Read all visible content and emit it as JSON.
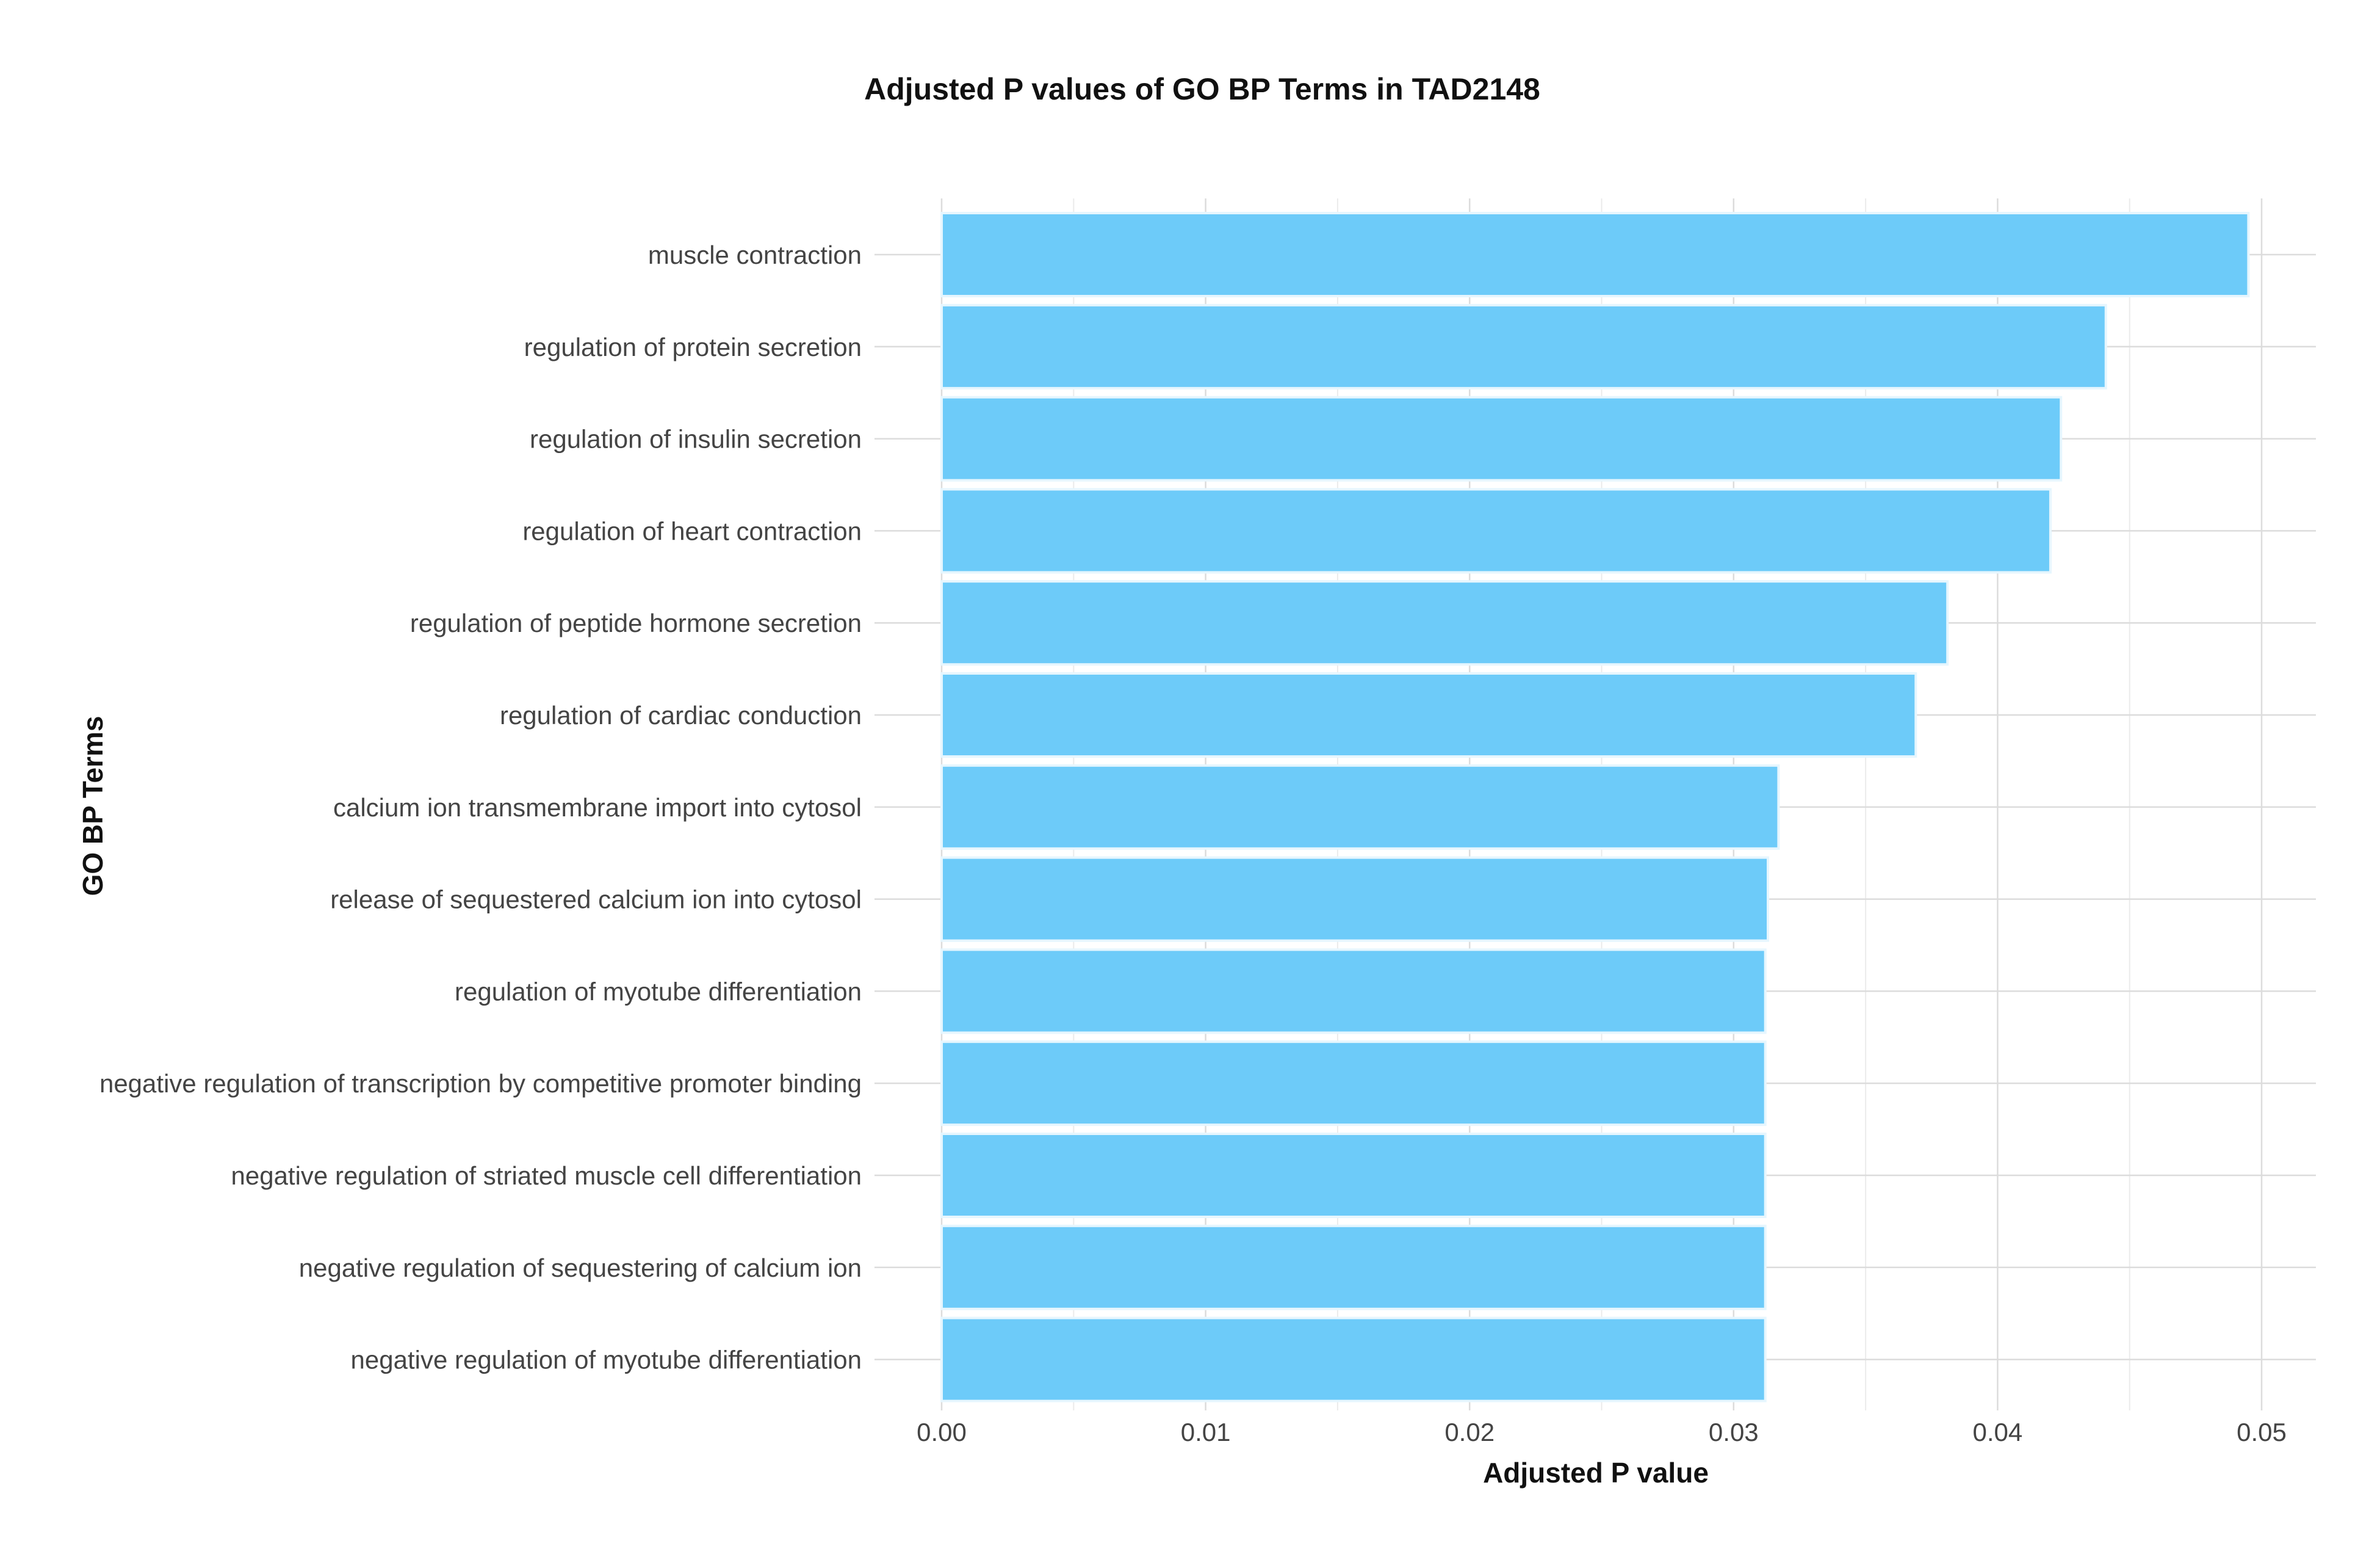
{
  "chart_data": {
    "type": "bar",
    "orientation": "horizontal",
    "title": "Adjusted P values of GO BP Terms in TAD2148",
    "xlabel": "Adjusted P value",
    "ylabel": "GO BP Terms",
    "xlim": [
      0,
      0.052
    ],
    "xticks": [
      "0.00",
      "0.01",
      "0.02",
      "0.03",
      "0.04",
      "0.05"
    ],
    "tick_values": [
      0,
      0.01,
      0.02,
      0.03,
      0.04,
      0.05
    ],
    "grid": true,
    "bar_color": "#6DCBF9",
    "bar_edge_color": "#E6F6FE",
    "grid_color": "#DCDCDC",
    "categories": [
      "muscle contraction",
      "regulation of protein secretion",
      "regulation of insulin secretion",
      "regulation of heart contraction",
      "regulation of peptide hormone secretion",
      "regulation of cardiac conduction",
      "calcium ion transmembrane import into cytosol",
      "release of sequestered calcium ion into cytosol",
      "regulation of myotube differentiation",
      "negative regulation of transcription by competitive promoter binding",
      "negative regulation of striated muscle cell differentiation",
      "negative regulation of sequestering of calcium ion",
      "negative regulation of myotube differentiation"
    ],
    "values": [
      0.0495,
      0.0441,
      0.0424,
      0.042,
      0.0381,
      0.0369,
      0.0317,
      0.0313,
      0.0312,
      0.0312,
      0.0312,
      0.0312,
      0.0312
    ]
  }
}
